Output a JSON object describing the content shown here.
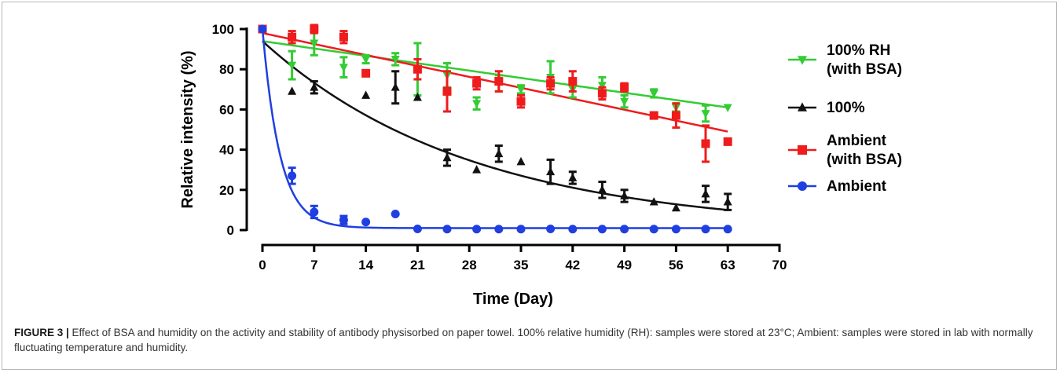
{
  "figure_caption": {
    "label": "FIGURE 3 |",
    "text": " Effect of BSA and humidity on the activity and stability of antibody physisorbed on paper towel. 100% relative humidity (RH): samples were stored at 23°C; Ambient: samples were stored in lab with normally fluctuating temperature and humidity."
  },
  "chart_data": {
    "type": "scatter",
    "title": "",
    "xlabel": "Time (Day)",
    "ylabel": "Relative intensity (%)",
    "xlim": [
      0,
      70
    ],
    "ylim": [
      0,
      100
    ],
    "xticks": [
      0,
      7,
      14,
      21,
      28,
      35,
      42,
      49,
      56,
      63,
      70
    ],
    "yticks": [
      0,
      20,
      40,
      60,
      80,
      100
    ],
    "grid": false,
    "legend_position": "right",
    "series": [
      {
        "name": "100% RH (with BSA)",
        "legend_lines": [
          "100% RH",
          "(with BSA)"
        ],
        "color": "#33cc33",
        "marker": "triangle-down",
        "x": [
          0,
          4,
          7,
          11,
          14,
          18,
          21,
          25,
          29,
          32,
          35,
          39,
          42,
          46,
          49,
          53,
          56,
          60,
          63
        ],
        "y": [
          100,
          82,
          93,
          81,
          85,
          85,
          80,
          77,
          63,
          73,
          70,
          76,
          70,
          72,
          64,
          68,
          61,
          58,
          61
        ],
        "err": [
          0,
          7,
          6,
          5,
          2,
          3,
          13,
          6,
          3,
          4,
          2,
          8,
          4,
          4,
          3,
          2,
          2,
          4,
          0
        ],
        "fit": "linear",
        "fit_start": 94,
        "fit_end": 61
      },
      {
        "name": "100%",
        "legend_lines": [
          "100%"
        ],
        "color": "#111111",
        "marker": "triangle-up",
        "x": [
          0,
          4,
          7,
          14,
          18,
          21,
          25,
          29,
          32,
          35,
          39,
          42,
          46,
          49,
          53,
          56,
          60,
          63
        ],
        "y": [
          100,
          69,
          71,
          67,
          71,
          66,
          36,
          30,
          38,
          34,
          29,
          26,
          20,
          17,
          14,
          11,
          18,
          14
        ],
        "err": [
          0,
          0,
          3,
          0,
          8,
          0,
          4,
          0,
          4,
          0,
          6,
          3,
          4,
          3,
          0,
          0,
          4,
          4
        ],
        "fit": "exponential",
        "fit_start": 94,
        "fit_end": 10
      },
      {
        "name": "Ambient (with BSA)",
        "legend_lines": [
          "Ambient",
          "(with BSA)"
        ],
        "color": "#ee1c1c",
        "marker": "square",
        "x": [
          0,
          4,
          7,
          11,
          14,
          21,
          25,
          29,
          32,
          35,
          39,
          42,
          46,
          49,
          53,
          56,
          60,
          63
        ],
        "y": [
          100,
          96,
          100,
          96,
          78,
          80,
          69,
          73,
          74,
          64,
          73,
          74,
          68,
          71,
          57,
          57,
          43,
          44
        ],
        "err": [
          0,
          3,
          2,
          3,
          0,
          5,
          10,
          3,
          5,
          3,
          3,
          5,
          3,
          2,
          0,
          6,
          9,
          0
        ],
        "fit": "linear",
        "fit_start": 98,
        "fit_end": 49
      },
      {
        "name": "Ambient",
        "legend_lines": [
          "Ambient"
        ],
        "color": "#1f3fe0",
        "marker": "circle",
        "x": [
          0,
          4,
          7,
          11,
          14,
          18,
          21,
          25,
          29,
          32,
          35,
          39,
          42,
          46,
          49,
          53,
          56,
          60,
          63
        ],
        "y": [
          100,
          27,
          9,
          5,
          4,
          8,
          0.6,
          0.5,
          0.5,
          0.5,
          0.5,
          0.6,
          0.5,
          0.5,
          0.5,
          0.5,
          0.5,
          0.5,
          0.5
        ],
        "err": [
          0,
          4,
          3,
          2,
          0,
          0,
          0,
          0,
          0,
          0,
          0,
          0,
          0,
          0,
          0,
          0,
          0,
          0,
          0
        ],
        "fit": "exp_decay",
        "fit_start": 100,
        "fit_plateau": 1,
        "fit_rate": 0.42
      }
    ]
  }
}
